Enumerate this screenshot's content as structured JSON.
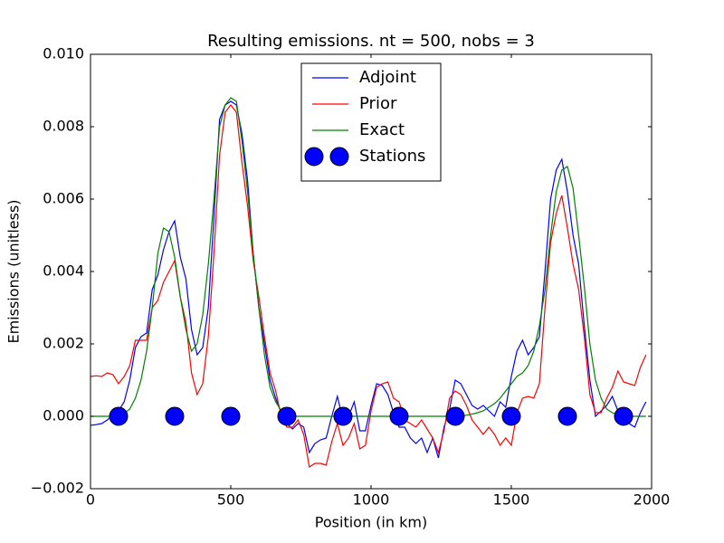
{
  "chart_data": {
    "type": "line",
    "title": "Resulting emissions. nt = 500, nobs = 3",
    "x_label": "Position (in km)",
    "y_label": "Emissions (unitless)",
    "xlim": [
      0,
      2000
    ],
    "ylim": [
      -0.002,
      0.01
    ],
    "xticks": [
      0,
      500,
      1000,
      1500,
      2000
    ],
    "yticks": [
      {
        "value": -0.002,
        "label": "−0.002"
      },
      {
        "value": 0,
        "label": "0.000"
      },
      {
        "value": 0.002,
        "label": "0.002"
      },
      {
        "value": 0.004,
        "label": "0.004"
      },
      {
        "value": 0.006,
        "label": "0.006"
      },
      {
        "value": 0.008,
        "label": "0.008"
      },
      {
        "value": 0.01,
        "label": "0.010"
      }
    ],
    "legend": "upper center",
    "x": [
      0,
      20,
      40,
      60,
      80,
      100,
      120,
      140,
      160,
      180,
      200,
      220,
      240,
      260,
      280,
      300,
      320,
      340,
      360,
      380,
      400,
      420,
      440,
      460,
      480,
      500,
      520,
      540,
      560,
      580,
      600,
      620,
      640,
      660,
      680,
      700,
      720,
      740,
      760,
      780,
      800,
      820,
      840,
      860,
      880,
      900,
      920,
      940,
      960,
      980,
      1000,
      1020,
      1040,
      1060,
      1080,
      1100,
      1120,
      1140,
      1160,
      1180,
      1200,
      1220,
      1240,
      1260,
      1280,
      1300,
      1320,
      1340,
      1360,
      1380,
      1400,
      1420,
      1440,
      1460,
      1480,
      1500,
      1520,
      1540,
      1560,
      1580,
      1600,
      1620,
      1640,
      1660,
      1680,
      1700,
      1720,
      1740,
      1760,
      1780,
      1800,
      1820,
      1840,
      1860,
      1880,
      1900,
      1920,
      1940,
      1960,
      1980
    ],
    "series": [
      {
        "name": "Adjoint",
        "color": "#0000ff",
        "style": "line",
        "values": [
          -0.00025,
          -0.00023,
          -0.0002,
          -0.0001,
          5e-05,
          0.00015,
          0.0004,
          0.001,
          0.0019,
          0.0022,
          0.0023,
          0.0035,
          0.0039,
          0.0046,
          0.0051,
          0.0054,
          0.0044,
          0.0038,
          0.0024,
          0.0017,
          0.0019,
          0.003,
          0.0055,
          0.0082,
          0.0086,
          0.0087,
          0.0086,
          0.0078,
          0.0065,
          0.0045,
          0.003,
          0.002,
          0.001,
          0.0005,
          0.0001,
          -0.0002,
          -0.00035,
          -0.0002,
          -0.0003,
          -0.001,
          -0.00075,
          -0.00065,
          -0.0006,
          0,
          0.00055,
          -0.0001,
          0,
          0.0004,
          -0.0004,
          -0.0004,
          0.0003,
          0.0009,
          0.00085,
          0.0006,
          0.0001,
          -0.0003,
          -0.0003,
          -0.0006,
          -0.00075,
          -0.0006,
          -0.001,
          -0.0006,
          -0.00115,
          -0.0003,
          0.0002,
          0.001,
          0.0009,
          0.0006,
          0.0003,
          0.0002,
          0.0003,
          0.00015,
          0,
          0.0004,
          0.00025,
          0.0011,
          0.0018,
          0.0021,
          0.0017,
          0.0019,
          0.0022,
          0.004,
          0.006,
          0.0068,
          0.0071,
          0.0062,
          0.005,
          0.0042,
          0.0025,
          0.001,
          0,
          0.00015,
          0.0003,
          0.00055,
          0.00015,
          0,
          -0.0002,
          -0.0003,
          0.0001,
          0.0004
        ]
      },
      {
        "name": "Prior",
        "color": "#ff0000",
        "style": "line",
        "values": [
          0.0011,
          0.00112,
          0.0011,
          0.0012,
          0.00115,
          0.0009,
          0.0011,
          0.0014,
          0.0021,
          0.0021,
          0.0021,
          0.003,
          0.0032,
          0.0037,
          0.004,
          0.0043,
          0.0033,
          0.0026,
          0.0012,
          0.0006,
          0.0009,
          0.0022,
          0.0045,
          0.0072,
          0.0084,
          0.0086,
          0.0084,
          0.007,
          0.0058,
          0.0043,
          0.0033,
          0.0022,
          0.0012,
          0.0007,
          0,
          -0.0003,
          -0.0003,
          -0.0001,
          -0.0005,
          -0.0014,
          -0.0013,
          -0.0013,
          -0.00135,
          -0.0007,
          -0.0002,
          -0.0008,
          -0.0006,
          -0.0002,
          -0.0009,
          -0.0008,
          0.00015,
          0.0008,
          0.0009,
          0.00095,
          0.0005,
          0.0004,
          -0.0001,
          -0.0002,
          -0.0003,
          -0.0001,
          -0.00035,
          -0.0006,
          -0.001,
          -0.0004,
          0.0005,
          0.0007,
          0.0006,
          0.0003,
          -0.0001,
          -0.0003,
          -0.0005,
          -0.0003,
          -0.0005,
          -0.0008,
          -0.0006,
          -0.0008,
          0.0001,
          0.0005,
          0.00055,
          0.0005,
          0.0009,
          0.003,
          0.0048,
          0.0056,
          0.0061,
          0.0052,
          0.0042,
          0.0035,
          0.0022,
          0.0006,
          0.0001,
          0.0001,
          0.0005,
          0.0008,
          0.00125,
          0.00095,
          0.0009,
          0.00085,
          0.00135,
          0.0017
        ]
      },
      {
        "name": "Exact",
        "color": "#008000",
        "style": "line",
        "values": [
          0,
          0,
          0,
          0,
          1e-05,
          3e-05,
          8e-05,
          0.0002,
          0.0005,
          0.001,
          0.0018,
          0.003,
          0.0045,
          0.0052,
          0.0051,
          0.0044,
          0.0033,
          0.0024,
          0.0018,
          0.002,
          0.0028,
          0.0042,
          0.006,
          0.008,
          0.0086,
          0.0088,
          0.0087,
          0.0076,
          0.0062,
          0.0045,
          0.003,
          0.0017,
          0.0008,
          0.0004,
          0.00015,
          5e-05,
          0,
          0,
          0,
          0,
          0,
          0,
          0,
          0,
          0,
          0,
          0,
          0,
          0,
          0,
          0,
          0,
          0,
          0,
          0,
          0,
          0,
          0,
          0,
          0,
          0,
          0,
          0,
          0,
          0,
          0,
          1e-05,
          3e-05,
          6e-05,
          0.0001,
          0.00015,
          0.00025,
          0.00035,
          0.0005,
          0.0007,
          0.0009,
          0.0011,
          0.0012,
          0.0014,
          0.0018,
          0.0025,
          0.0035,
          0.005,
          0.0062,
          0.0068,
          0.0069,
          0.0063,
          0.005,
          0.0036,
          0.002,
          0.001,
          0.0005,
          0.0002,
          0.0001,
          3e-05,
          1e-05,
          0,
          0,
          0,
          0
        ]
      },
      {
        "name": "Stations",
        "color": "#0000ff",
        "style": "markers",
        "x": [
          100,
          300,
          500,
          700,
          900,
          1100,
          1300,
          1500,
          1700,
          1900
        ],
        "values": [
          0,
          0,
          0,
          0,
          0,
          0,
          0,
          0,
          0,
          0
        ]
      }
    ]
  }
}
